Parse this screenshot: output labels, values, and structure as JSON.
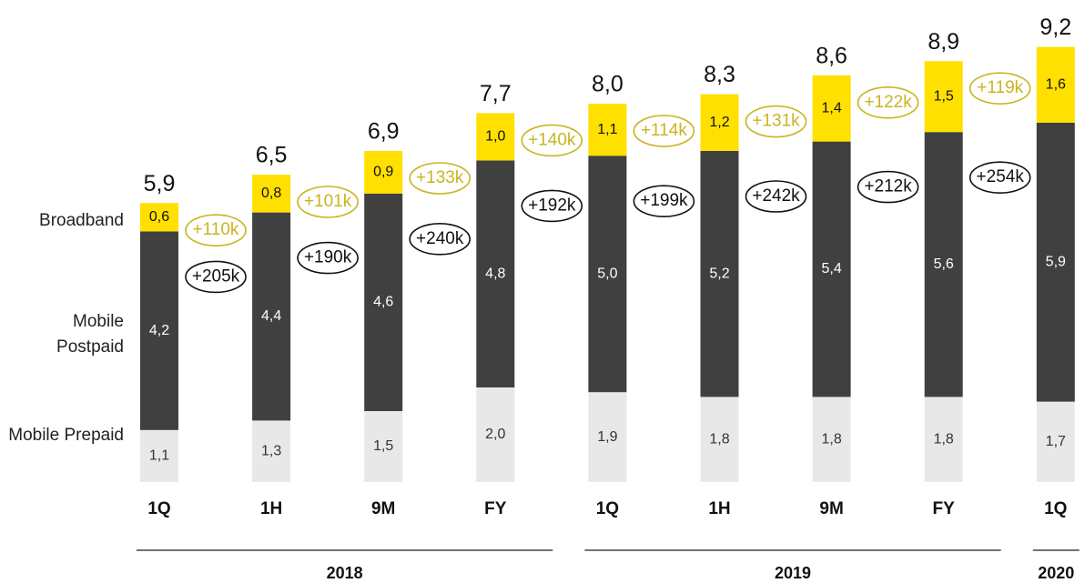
{
  "chart_data": {
    "type": "stacked_bar",
    "categories": [
      "1Q",
      "1H",
      "9M",
      "FY",
      "1Q",
      "1H",
      "9M",
      "FY",
      "1Q"
    ],
    "groups": [
      {
        "label": "2018",
        "count": 4
      },
      {
        "label": "2019",
        "count": 4
      },
      {
        "label": "2020",
        "count": 1
      }
    ],
    "series": [
      {
        "name": "Mobile Prepaid",
        "color": "#e8e8e8",
        "label_color": "#333333",
        "values": [
          1.1,
          1.3,
          1.5,
          2.0,
          1.9,
          1.8,
          1.8,
          1.8,
          1.7
        ],
        "value_labels": [
          "1,1",
          "1,3",
          "1,5",
          "2,0",
          "1,9",
          "1,8",
          "1,8",
          "1,8",
          "1,7"
        ]
      },
      {
        "name": "Mobile Postpaid",
        "color": "#404040",
        "label_color": "#ffffff",
        "values": [
          4.2,
          4.4,
          4.6,
          4.8,
          5.0,
          5.2,
          5.4,
          5.6,
          5.9
        ],
        "value_labels": [
          "4,2",
          "4,4",
          "4,6",
          "4,8",
          "5,0",
          "5,2",
          "5,4",
          "5,6",
          "5,9"
        ],
        "adds": [
          "+205k",
          "+190k",
          "+240k",
          "+192k",
          "+199k",
          "+242k",
          "+212k",
          "+254k"
        ],
        "adds_color": "#111111"
      },
      {
        "name": "Broadband",
        "color": "#ffe000",
        "label_color": "#111111",
        "values": [
          0.6,
          0.8,
          0.9,
          1.0,
          1.1,
          1.2,
          1.4,
          1.5,
          1.6
        ],
        "value_labels": [
          "0,6",
          "0,8",
          "0,9",
          "1,0",
          "1,1",
          "1,2",
          "1,4",
          "1,5",
          "1,6"
        ],
        "adds": [
          "+110k",
          "+101k",
          "+133k",
          "+140k",
          "+114k",
          "+131k",
          "+122k",
          "+119k"
        ],
        "adds_color": "#c9b420"
      }
    ],
    "totals": [
      5.9,
      6.5,
      6.9,
      7.7,
      8.0,
      8.3,
      8.6,
      8.9,
      9.2
    ],
    "total_labels": [
      "5,9",
      "6,5",
      "6,9",
      "7,7",
      "8,0",
      "8,3",
      "8,6",
      "8,9",
      "9,2"
    ]
  }
}
